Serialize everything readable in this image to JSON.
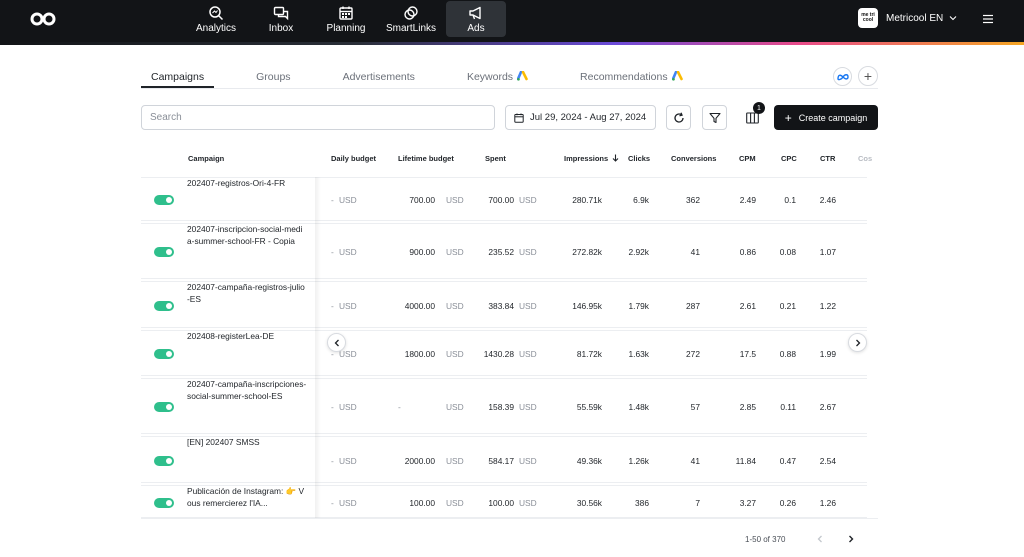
{
  "nav": {
    "items": [
      {
        "label": "Analytics",
        "icon": "analytics-icon"
      },
      {
        "label": "Inbox",
        "icon": "inbox-icon"
      },
      {
        "label": "Planning",
        "icon": "calendar-icon"
      },
      {
        "label": "SmartLinks",
        "icon": "link-icon"
      },
      {
        "label": "Ads",
        "icon": "megaphone-icon",
        "active": true
      }
    ]
  },
  "account": {
    "name": "Metricool EN",
    "logo_text": "me tri cool"
  },
  "tabs": [
    {
      "label": "Campaigns",
      "active": true
    },
    {
      "label": "Groups"
    },
    {
      "label": "Advertisements"
    },
    {
      "label": "Keywords",
      "google_ads_icon": true
    },
    {
      "label": "Recommendations",
      "google_ads_icon": true
    }
  ],
  "toolbar": {
    "search_placeholder": "Search",
    "date_range": "Jul 29, 2024 - Aug 27, 2024",
    "columns_badge": "1",
    "create_label": "Create campaign"
  },
  "table": {
    "headers": {
      "campaign": "Campaign",
      "daily_budget": "Daily budget",
      "lifetime_budget": "Lifetime budget",
      "spent": "Spent",
      "impressions": "Impressions",
      "clicks": "Clicks",
      "conversions": "Conversions",
      "cpm": "CPM",
      "cpc": "CPC",
      "ctr": "CTR",
      "cost_conv": "Cos"
    },
    "rows": [
      {
        "name": "202407-registros-Ori-4-FR",
        "daily": "-",
        "daily_cur": "USD",
        "lifetime": "700.00",
        "lifetime_cur": "USD",
        "spent": "700.00",
        "spent_cur": "USD",
        "impressions": "280.71k",
        "clicks": "6.9k",
        "conversions": "362",
        "cpm": "2.49",
        "cpc": "0.1",
        "ctr": "2.46"
      },
      {
        "name": "202407-inscripcion-social-media-summer-school-FR - Copia",
        "daily": "-",
        "daily_cur": "USD",
        "lifetime": "900.00",
        "lifetime_cur": "USD",
        "spent": "235.52",
        "spent_cur": "USD",
        "impressions": "272.82k",
        "clicks": "2.92k",
        "conversions": "41",
        "cpm": "0.86",
        "cpc": "0.08",
        "ctr": "1.07"
      },
      {
        "name": "202407-campaña-registros-julio-ES",
        "daily": "-",
        "daily_cur": "USD",
        "lifetime": "4000.00",
        "lifetime_cur": "USD",
        "spent": "383.84",
        "spent_cur": "USD",
        "impressions": "146.95k",
        "clicks": "1.79k",
        "conversions": "287",
        "cpm": "2.61",
        "cpc": "0.21",
        "ctr": "1.22"
      },
      {
        "name": "202408-registerLea-DE",
        "daily": "-",
        "daily_cur": "USD",
        "lifetime": "1800.00",
        "lifetime_cur": "USD",
        "spent": "1430.28",
        "spent_cur": "USD",
        "impressions": "81.72k",
        "clicks": "1.63k",
        "conversions": "272",
        "cpm": "17.5",
        "cpc": "0.88",
        "ctr": "1.99"
      },
      {
        "name": "202407-campaña-inscripciones-social-summer-school-ES",
        "daily": "-",
        "daily_cur": "USD",
        "lifetime": "-",
        "lifetime_cur": "USD",
        "spent": "158.39",
        "spent_cur": "USD",
        "impressions": "55.59k",
        "clicks": "1.48k",
        "conversions": "57",
        "cpm": "2.85",
        "cpc": "0.11",
        "ctr": "2.67"
      },
      {
        "name": "[EN] 202407 SMSS",
        "daily": "-",
        "daily_cur": "USD",
        "lifetime": "2000.00",
        "lifetime_cur": "USD",
        "spent": "584.17",
        "spent_cur": "USD",
        "impressions": "49.36k",
        "clicks": "1.26k",
        "conversions": "41",
        "cpm": "11.84",
        "cpc": "0.47",
        "ctr": "2.54"
      },
      {
        "name": "Publicación de Instagram: 👉 Vous remercierez l'IA...",
        "daily": "-",
        "daily_cur": "USD",
        "lifetime": "100.00",
        "lifetime_cur": "USD",
        "spent": "100.00",
        "spent_cur": "USD",
        "impressions": "30.56k",
        "clicks": "386",
        "conversions": "7",
        "cpm": "3.27",
        "cpc": "0.26",
        "ctr": "1.26"
      }
    ]
  },
  "pagination": {
    "range": "1-50 of 370"
  }
}
